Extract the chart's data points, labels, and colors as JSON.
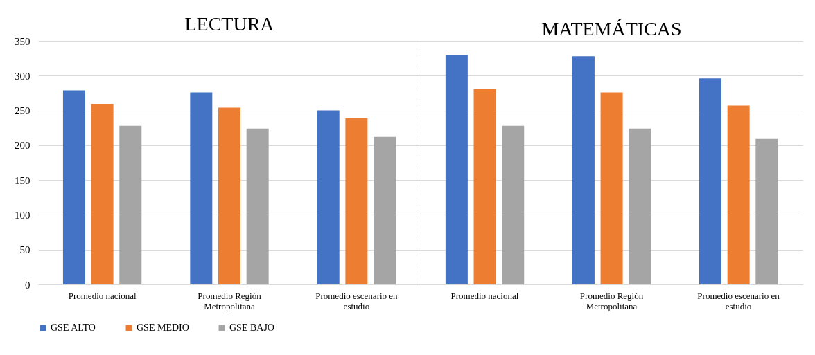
{
  "chart_data": [
    {
      "type": "bar",
      "title": "LECTURA",
      "categories": [
        "Promedio nacional",
        "Promedio Región Metropolitana",
        "Promedio escenario en estudio"
      ],
      "series": [
        {
          "name": "GSE ALTO",
          "color": "#4472c4",
          "values": [
            279,
            276,
            250
          ]
        },
        {
          "name": "GSE MEDIO",
          "color": "#ed7d31",
          "values": [
            259,
            254,
            239
          ]
        },
        {
          "name": "GSE BAJO",
          "color": "#a5a5a5",
          "values": [
            228,
            224,
            212
          ]
        }
      ],
      "ylim": [
        0,
        350
      ],
      "yticks": [
        0,
        50,
        100,
        150,
        200,
        250,
        300,
        350
      ],
      "grid": "y",
      "legend": "bottom"
    },
    {
      "type": "bar",
      "title": "MATEMÁTICAS",
      "categories": [
        "Promedio nacional",
        "Promedio Región Metropolitana",
        "Promedio escenario en estudio"
      ],
      "series": [
        {
          "name": "GSE ALTO",
          "color": "#4472c4",
          "values": [
            330,
            328,
            296
          ]
        },
        {
          "name": "GSE MEDIO",
          "color": "#ed7d31",
          "values": [
            281,
            276,
            257
          ]
        },
        {
          "name": "GSE BAJO",
          "color": "#a5a5a5",
          "values": [
            228,
            224,
            209
          ]
        }
      ],
      "ylim": [
        0,
        350
      ],
      "yticks": [
        0,
        50,
        100,
        150,
        200,
        250,
        300,
        350
      ],
      "grid": "y",
      "legend": "bottom",
      "tick_labels": "x"
    }
  ]
}
